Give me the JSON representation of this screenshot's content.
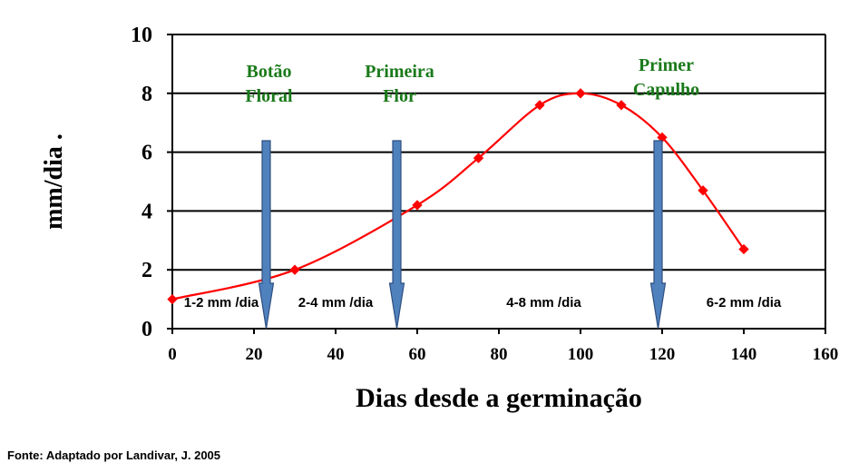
{
  "chart_data": {
    "type": "line",
    "xlabel": "Dias desde a germinação",
    "ylabel": "mm/dia .",
    "xlim": [
      0,
      160
    ],
    "ylim": [
      0,
      10
    ],
    "xticks": [
      0,
      20,
      40,
      60,
      80,
      100,
      120,
      140,
      160
    ],
    "yticks": [
      0,
      2,
      4,
      6,
      8,
      10
    ],
    "grid": "horizontal",
    "series": [
      {
        "color": "#ff0000",
        "x": [
          0,
          30,
          60,
          75,
          90,
          100,
          110,
          120,
          130,
          140
        ],
        "y": [
          1.0,
          2.0,
          4.2,
          5.8,
          7.6,
          8.0,
          7.6,
          6.5,
          4.7,
          2.7
        ]
      }
    ],
    "stages": [
      {
        "line1": "Botão",
        "line2": "Floral",
        "x": 23
      },
      {
        "line1": "Primeira",
        "line2": "Flor",
        "x": 55
      },
      {
        "line1": "Primer",
        "line2": "Capulho",
        "x": 119
      }
    ],
    "rates": [
      {
        "label": "1-2 mm /dia",
        "x": 12
      },
      {
        "label": "2-4 mm /dia",
        "x": 40
      },
      {
        "label": "4-8 mm /dia",
        "x": 91
      },
      {
        "label": "6-2 mm /dia",
        "x": 140
      }
    ],
    "colors": {
      "line": "#ff0000",
      "arrow": "#4f81bd",
      "stage_text": "#1a7a1a"
    }
  },
  "source": "Fonte: Adaptado por Landivar, J. 2005"
}
